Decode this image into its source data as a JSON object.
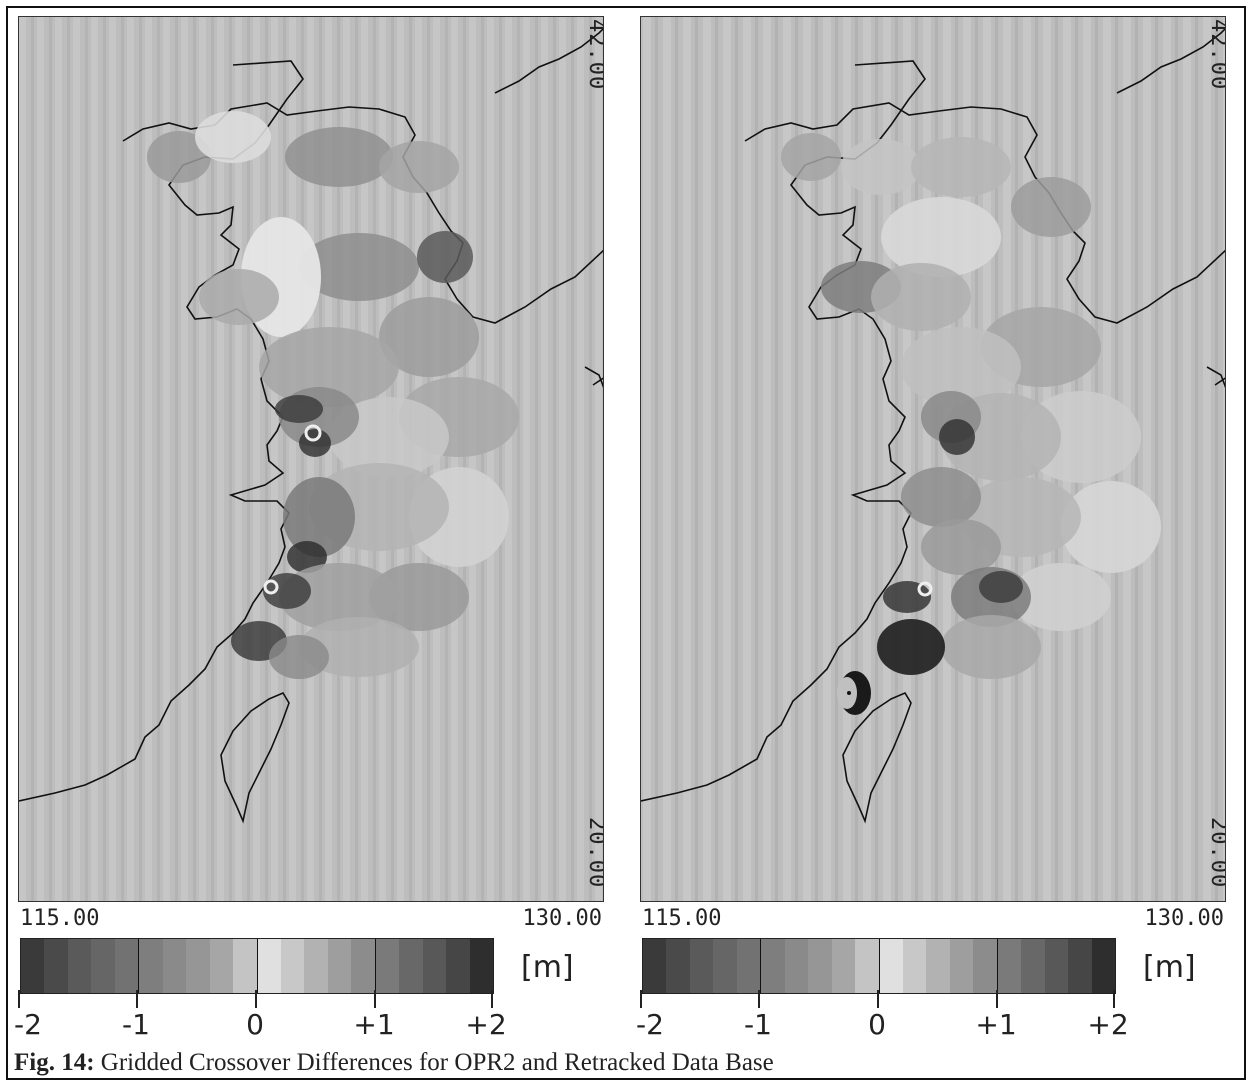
{
  "figure": {
    "caption_label": "Fig. 14:",
    "caption_text": "Gridded Crossover Differences for OPR2 and Retracked Data Base"
  },
  "panels": [
    {
      "id": "opr2",
      "lat_top": "42.00",
      "lat_bottom": "20.00",
      "lon_left": "115.00",
      "lon_right": "130.00",
      "unit": "[m]",
      "colorbar_ticks": [
        "-2",
        "-1",
        "0",
        "+1",
        "+2"
      ]
    },
    {
      "id": "retracked",
      "lat_top": "42.00",
      "lat_bottom": "20.00",
      "lon_left": "115.00",
      "lon_right": "130.00",
      "unit": "[m]",
      "colorbar_ticks": [
        "-2",
        "-1",
        "0",
        "+1",
        "+2"
      ]
    }
  ],
  "colorbar_scale": {
    "min": -2,
    "max": 2,
    "steps": 20,
    "colors": [
      "#3a3a3a",
      "#4a4a4a",
      "#5a5a5a",
      "#666666",
      "#727272",
      "#7e7e7e",
      "#8a8a8a",
      "#969696",
      "#a6a6a6",
      "#c4c4c4",
      "#e0e0e0",
      "#c8c8c8",
      "#b2b2b2",
      "#9e9e9e",
      "#8c8c8c",
      "#7a7a7a",
      "#686868",
      "#585858",
      "#464646",
      "#2e2e2e"
    ]
  }
}
